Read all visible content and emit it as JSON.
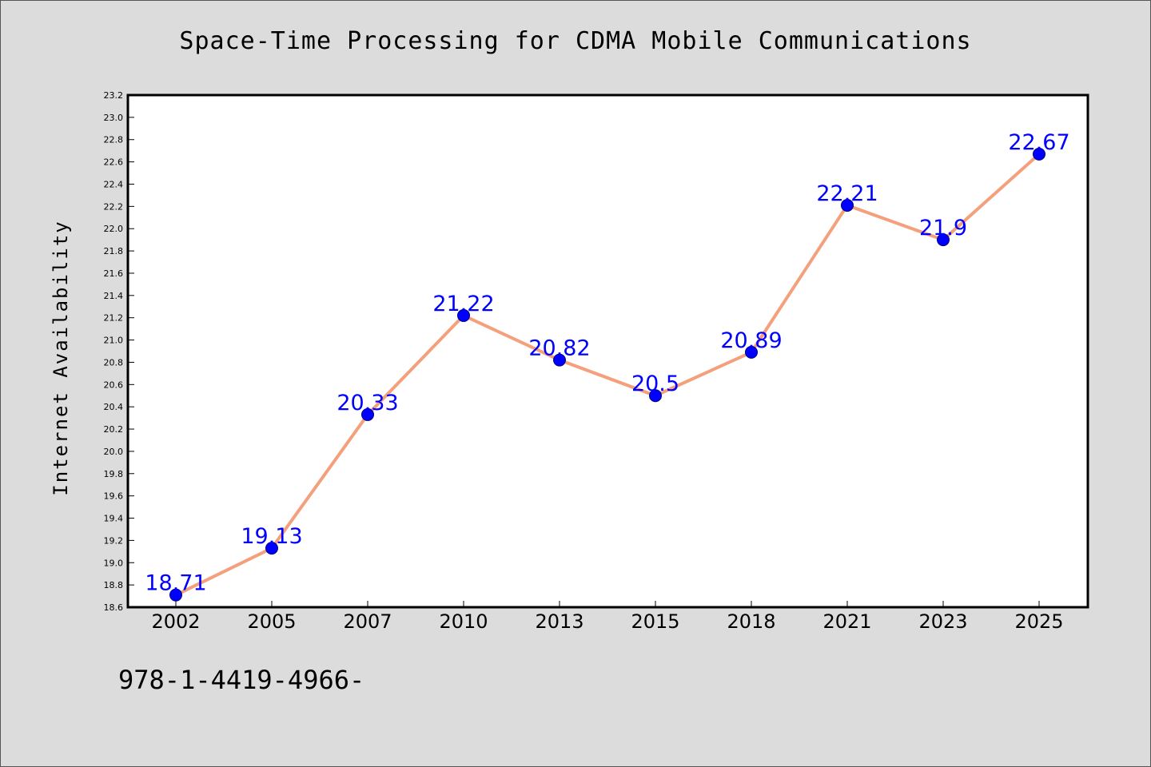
{
  "colors": {
    "background": "#dcdcdc",
    "plot_background": "#ffffff",
    "line": "#f4a07c",
    "marker": "#0000ff",
    "data_label": "#0000ff",
    "axis": "#000000"
  },
  "footer": {
    "text": "978-1-4419-4966-"
  },
  "chart_data": {
    "type": "line",
    "title": "Space-Time Processing for CDMA Mobile Communications",
    "xlabel": "",
    "ylabel": "Internet Availability",
    "categories": [
      "2002",
      "2005",
      "2007",
      "2010",
      "2013",
      "2015",
      "2018",
      "2021",
      "2023",
      "2025"
    ],
    "series": [
      {
        "values": [
          18.71,
          19.13,
          20.33,
          21.22,
          20.82,
          20.5,
          20.89,
          22.21,
          21.9,
          22.67
        ],
        "data_labels": [
          "18.71",
          "19.13",
          "20.33",
          "21.22",
          "20.82",
          "20.5",
          "20.89",
          "22.21",
          "21.9",
          "22.67"
        ]
      }
    ],
    "ylim": [
      18.6,
      23.2
    ],
    "yticks": [
      "18.6",
      "18.8",
      "19.0",
      "19.2",
      "19.4",
      "19.6",
      "19.8",
      "20.0",
      "20.2",
      "20.4",
      "20.6",
      "20.8",
      "21.0",
      "21.2",
      "21.4",
      "21.6",
      "21.8",
      "22.0",
      "22.2",
      "22.4",
      "22.6",
      "22.8",
      "23.0",
      "23.2"
    ],
    "grid": false,
    "legend": "none"
  }
}
